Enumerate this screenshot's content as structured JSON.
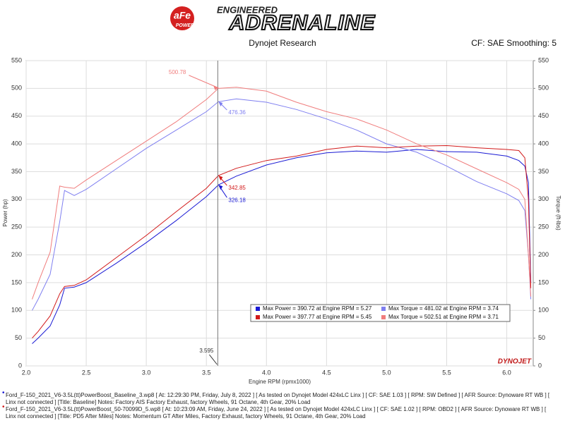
{
  "header": {
    "logo_top": "ENGINEERED",
    "logo_main": "ADRENALINE",
    "logo_badge": "aFe",
    "logo_badge_sub": "POWER"
  },
  "chart_data": {
    "type": "line",
    "title": "Dynojet Research",
    "subtitle": "CF: SAE Smoothing: 5",
    "x_label": "Engine RPM (rpmx1000)",
    "y_label": "Power (hp)",
    "y2_label": "Torque (ft-lbs)",
    "watermark": "DYNOJET",
    "xlim": [
      2.0,
      6.22
    ],
    "xticks": [
      {
        "value": 2,
        "label": "2.0"
      },
      2.5,
      {
        "value": 3,
        "label": "3.0"
      },
      3.5,
      {
        "value": 4,
        "label": "4.0"
      },
      4.5,
      {
        "value": 5,
        "label": "5.0"
      },
      5.5,
      {
        "value": 6,
        "label": "6.0"
      }
    ],
    "ylim": [
      0,
      550
    ],
    "yticks": [
      0,
      50,
      100,
      150,
      200,
      250,
      300,
      350,
      400,
      450,
      500,
      550
    ],
    "y2lim": [
      0,
      550
    ],
    "y2ticks": [
      0,
      50,
      100,
      150,
      200,
      250,
      300,
      350,
      400,
      450,
      500,
      550
    ],
    "grid": true,
    "x": [
      2.05,
      2.1,
      2.2,
      2.28,
      2.32,
      2.4,
      2.5,
      2.75,
      3.0,
      3.25,
      3.5,
      3.6,
      3.75,
      4.0,
      4.25,
      4.5,
      4.75,
      5.0,
      5.25,
      5.5,
      5.75,
      6.0,
      6.1,
      6.15,
      6.18,
      6.2
    ],
    "series": [
      {
        "name": "Max Power = 390.72 at Engine RPM = 5.27",
        "color": "#1a1ad4",
        "values": [
          40,
          50,
          72,
          110,
          140,
          142,
          150,
          185,
          222,
          262,
          305,
          326,
          342,
          362,
          375,
          384,
          387,
          385,
          390,
          386,
          385,
          378,
          370,
          360,
          330,
          150
        ]
      },
      {
        "name": "Max Torque = 481.02 at Engine RPM = 3.74",
        "color": "#7f7ff0",
        "axis": "y2",
        "values": [
          100,
          120,
          165,
          260,
          316,
          307,
          318,
          355,
          392,
          425,
          458,
          476,
          481,
          475,
          462,
          445,
          425,
          400,
          385,
          360,
          332,
          310,
          298,
          280,
          200,
          120
        ]
      },
      {
        "name": "Max Power = 397.77 at Engine RPM = 5.45",
        "color": "#d21a1a",
        "values": [
          50,
          62,
          90,
          130,
          143,
          145,
          155,
          195,
          235,
          278,
          320,
          343,
          356,
          370,
          378,
          390,
          396,
          393,
          396,
          397,
          393,
          390,
          388,
          375,
          300,
          140
        ]
      },
      {
        "name": "Max Torque = 502.51 at Engine RPM = 3.71",
        "color": "#f07d7d",
        "axis": "y2",
        "values": [
          120,
          150,
          205,
          324,
          322,
          320,
          335,
          370,
          405,
          440,
          480,
          500,
          502,
          495,
          475,
          458,
          445,
          425,
          400,
          380,
          355,
          330,
          318,
          300,
          200,
          125
        ]
      }
    ],
    "cursor": 3.595,
    "annotations": [
      {
        "x": 3.595,
        "y": 500.78,
        "color": "#f07d7d"
      },
      {
        "x": 3.595,
        "y": 476.36,
        "color": "#7f7ff0"
      },
      {
        "x": 3.595,
        "y": 342.85,
        "color": "#d21a1a"
      },
      {
        "x": 3.595,
        "y": 326.18,
        "color": "#1a1ad4"
      }
    ]
  },
  "footer": [
    "Ford_F-150_2021_V6-3.5L(tt)PowerBoost_Baseline_3.wp8 [ At: 12:29:30 PM, Friday, July 8, 2022 ] [ As tested on Dynojet Model 424xLC Linx ] [ CF: SAE 1.03 ] [ RPM: SW Defined ] [ AFR Source: Dynoware RT WB ] [ Linx not connected ] [Title: Baseline]  Notes: Factory AIS  Factory Exhaust, factory Wheels, 91 Octane, 4th Gear, 20% Load",
    "Ford_F-150_2021_V6-3.5L(tt)PowerBoost_50-70099D_5.wp8 [ At: 10:23:09 AM, Friday, June 24, 2022 ] [ As tested on Dynojet Model 424xLC Linx ] [ CF: SAE 1.02 ] [ RPM: OBD2 ] [ AFR Source: Dynoware RT WB ] [ Linx not connected ] [Title: PD5 After Miles]  Notes: Momentum GT After Miles, Factory Exhaust, factory Wheels, 91 Octane, 4th Gear, 20% Load"
  ]
}
